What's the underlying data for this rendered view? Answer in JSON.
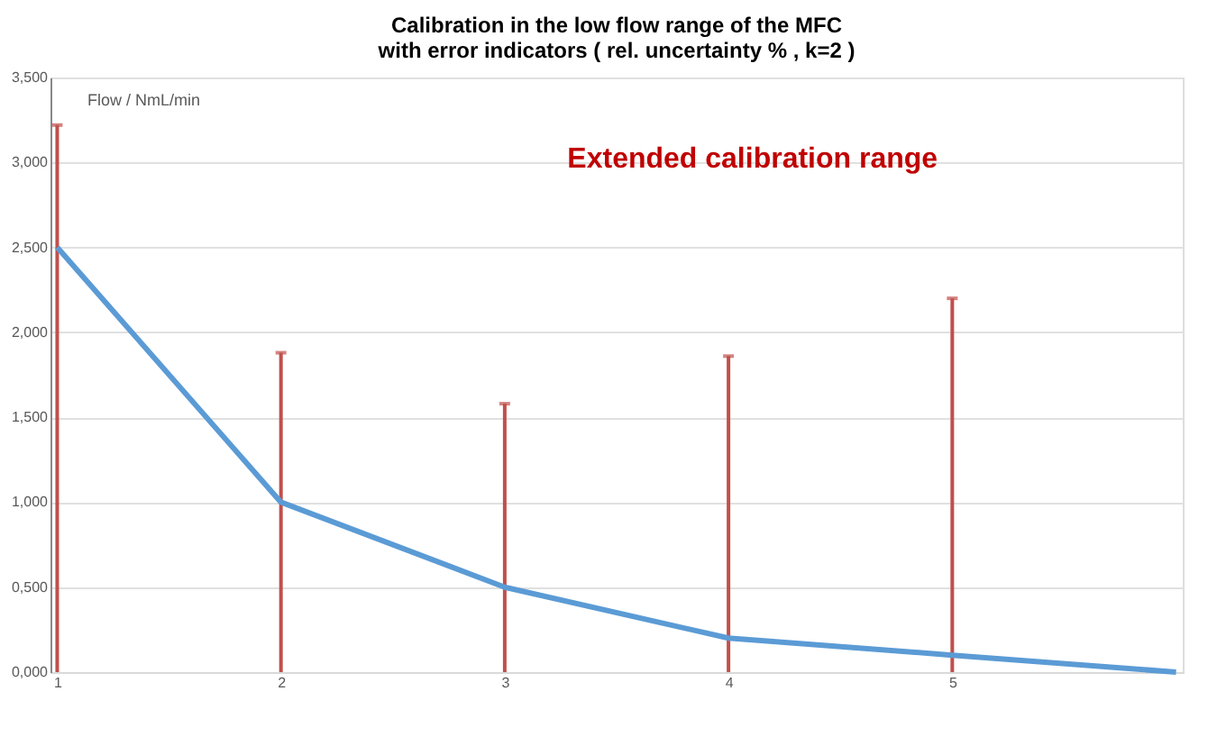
{
  "chart_data": {
    "type": "line",
    "title": [
      "Calibration in the low flow range of the MFC",
      "with error indicators ( rel. uncertainty % , k=2 )"
    ],
    "ylabel": "Flow   / NmL/min",
    "annotations": [
      "Extended calibration range"
    ],
    "categories": [
      "1",
      "2",
      "3",
      "4",
      "5",
      null
    ],
    "series": [
      {
        "color": "#5b9bd5",
        "values": [
          2.5,
          1.0,
          0.5,
          0.2,
          0.1,
          0.0
        ],
        "errors": [
          [
            0,
            3.22
          ],
          [
            0,
            1.88
          ],
          [
            0,
            1.58
          ],
          [
            0,
            1.86
          ],
          [
            0,
            2.2
          ],
          null
        ]
      }
    ],
    "ylim": [
      0,
      3.5
    ],
    "yticks": [
      {
        "value": 0,
        "label": "0,000"
      },
      {
        "value": 0.5,
        "label": "0,500"
      },
      {
        "value": 1.0,
        "label": "1,000"
      },
      {
        "value": 1.5,
        "label": "1,500"
      },
      {
        "value": 2.0,
        "label": "2,000"
      },
      {
        "value": 2.5,
        "label": "2,500"
      },
      {
        "value": 3.0,
        "label": "3,000"
      },
      {
        "value": 3.5,
        "label": "3,500"
      }
    ],
    "grid": "y",
    "marker": "none",
    "line_style": "solid"
  }
}
